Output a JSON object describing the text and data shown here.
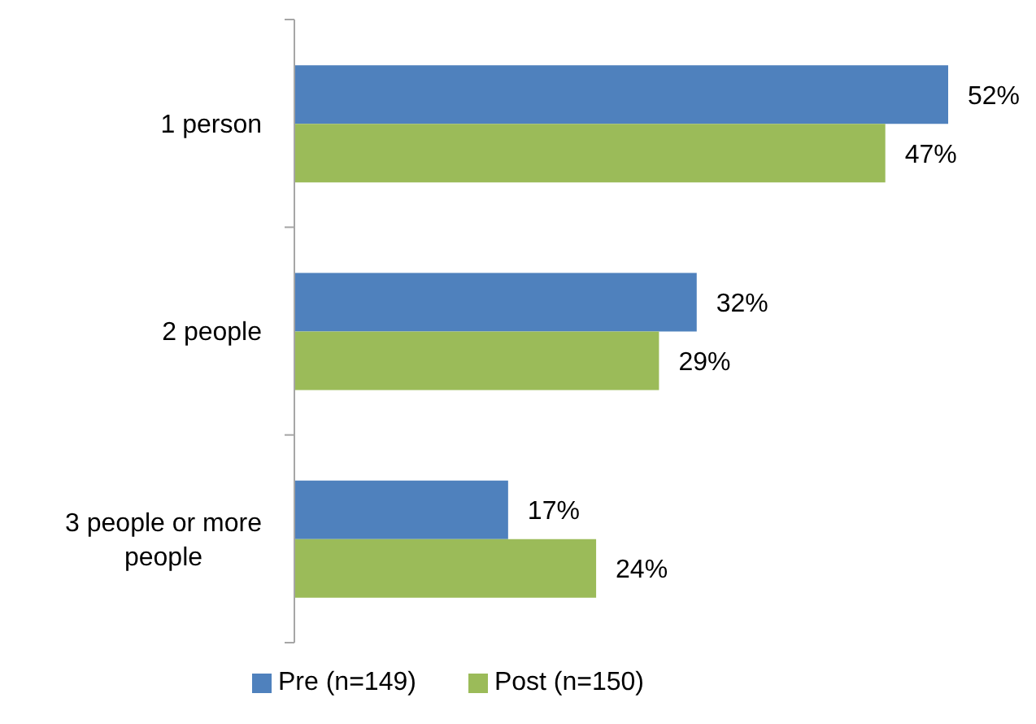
{
  "chart_data": {
    "type": "bar",
    "orientation": "horizontal",
    "categories": [
      "1 person",
      "2 people",
      "3 people or more people"
    ],
    "series": [
      {
        "name": "Pre (n=149)",
        "color": "#4f81bd",
        "values": [
          52,
          32,
          17
        ],
        "value_labels": [
          "52%",
          "32%",
          "17%"
        ]
      },
      {
        "name": "Post (n=150)",
        "color": "#9bbb59",
        "values": [
          47,
          29,
          24
        ],
        "value_labels": [
          "47%",
          "29%",
          "24%"
        ]
      }
    ],
    "legend": "bottom",
    "tick_labels": "y"
  }
}
